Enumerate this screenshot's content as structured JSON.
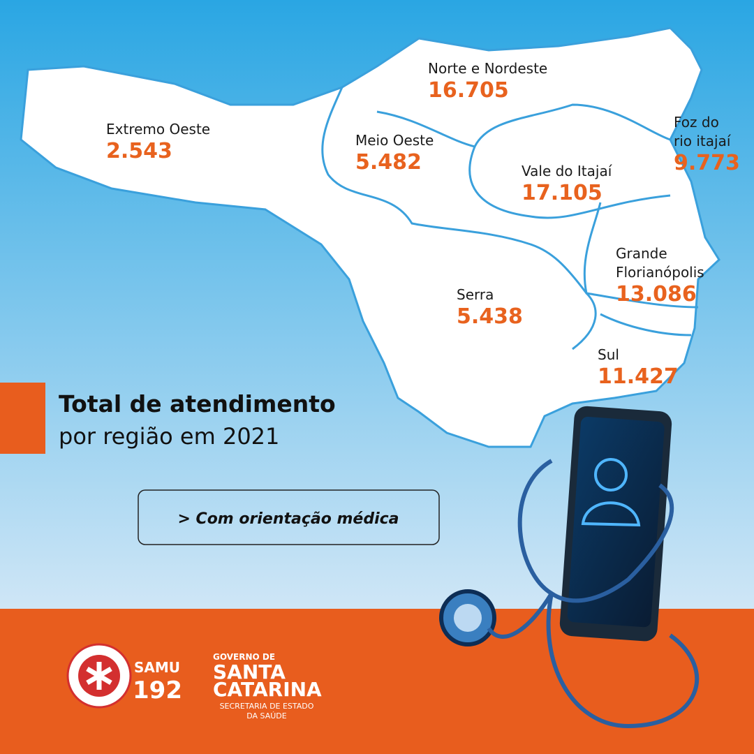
{
  "regions": [
    {
      "name": [
        "Extremo Oeste"
      ],
      "value": "2.543"
    },
    {
      "name": [
        "Norte e Nordeste"
      ],
      "value": "16.705"
    },
    {
      "name": [
        "Meio Oeste"
      ],
      "value": "5.482"
    },
    {
      "name": [
        "Vale do Itajaí"
      ],
      "value": "17.105"
    },
    {
      "name": [
        "Foz do",
        "rio itajaí"
      ],
      "value": "9.773"
    },
    {
      "name": [
        "Grande",
        "Florianópolis"
      ],
      "value": "13.086"
    },
    {
      "name": [
        "Serra"
      ],
      "value": "5.438"
    },
    {
      "name": [
        "Sul"
      ],
      "value": "11.427"
    }
  ],
  "headline": {
    "bold": "Total de atendimento",
    "regular": "por região em 2021"
  },
  "button": "> Com orientação médica",
  "samu": {
    "name": "SAMU",
    "number": "192"
  },
  "government": {
    "line1": "GOVERNO DE",
    "line2": "SANTA",
    "line3": "CATARINA",
    "line4": "SECRETARIA DE ESTADO",
    "line5": "DA SAÚDE"
  }
}
